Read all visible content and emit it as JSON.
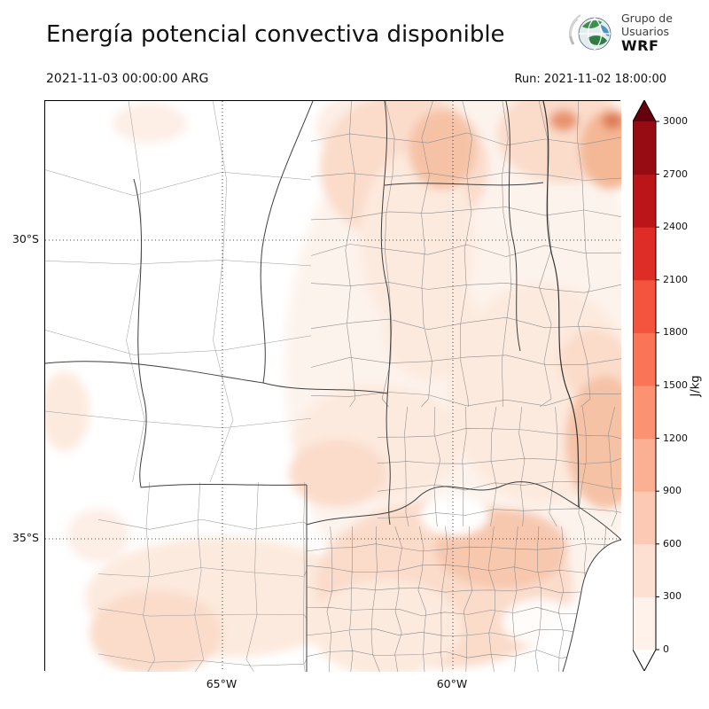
{
  "header": {
    "title": "Energía potencial convectiva disponible",
    "valid_time": "2021-11-03 00:00:00 ARG",
    "run_label": "Run: 2021-11-02 18:00:00",
    "logo": {
      "line1": "Grupo de",
      "line2": "Usuarios",
      "line3": "WRF"
    }
  },
  "map": {
    "lat_ticks": [
      {
        "label": "30°S"
      },
      {
        "label": "35°S"
      }
    ],
    "lon_ticks": [
      {
        "label": "65°W"
      },
      {
        "label": "60°W"
      }
    ],
    "fill_colors": {
      "bin_0_300": "#fdeee6",
      "bin_300_600": "#fbdccb",
      "bin_600_900": "#f6c2a6",
      "bin_900_1200": "#e8936c"
    }
  },
  "colorbar": {
    "unit": "J/kg",
    "ticks": [
      "0",
      "300",
      "600",
      "900",
      "1200",
      "1500",
      "1800",
      "2100",
      "2400",
      "2700",
      "3000"
    ],
    "segment_colors": [
      "#fff2eb",
      "#fee0d2",
      "#fccab4",
      "#fcb093",
      "#fb9272",
      "#fa7458",
      "#f4543e",
      "#de2d26",
      "#bb151a",
      "#970b13"
    ],
    "under_color": "#ffffff",
    "over_color": "#67000d"
  }
}
